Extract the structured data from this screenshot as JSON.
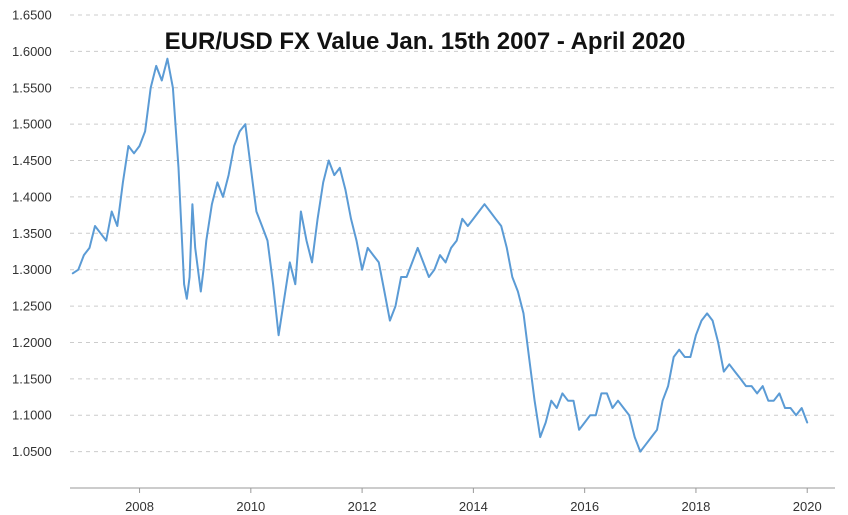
{
  "chart_data": {
    "type": "line",
    "title": "EUR/USD FX Value Jan. 15th 2007 - April 2020",
    "xlabel": "",
    "ylabel": "",
    "xlim": [
      2006.75,
      2020.05
    ],
    "ylim": [
      1.0,
      1.65
    ],
    "y_ticks": [
      "1.0500",
      "1.1000",
      "1.1500",
      "1.2000",
      "1.2500",
      "1.3000",
      "1.3500",
      "1.4000",
      "1.4500",
      "1.5000",
      "1.5500",
      "1.6000",
      "1.6500"
    ],
    "x_ticks": [
      "2008",
      "2010",
      "2012",
      "2014",
      "2016",
      "2018",
      "2020"
    ],
    "grid": true,
    "legend": "none",
    "line_color": "#5b9bd5",
    "series": [
      {
        "x": [
          2006.8,
          2006.9,
          2007.0,
          2007.1,
          2007.2,
          2007.3,
          2007.4,
          2007.5,
          2007.6,
          2007.7,
          2007.8,
          2007.9,
          2008.0,
          2008.1,
          2008.2,
          2008.3,
          2008.4,
          2008.5,
          2008.6,
          2008.7,
          2008.75,
          2008.8,
          2008.85,
          2008.9,
          2008.95,
          2009.0,
          2009.1,
          2009.15,
          2009.2,
          2009.3,
          2009.4,
          2009.5,
          2009.6,
          2009.7,
          2009.8,
          2009.9,
          2010.0,
          2010.1,
          2010.2,
          2010.3,
          2010.4,
          2010.5,
          2010.6,
          2010.7,
          2010.8,
          2010.9,
          2011.0,
          2011.1,
          2011.2,
          2011.3,
          2011.4,
          2011.5,
          2011.6,
          2011.7,
          2011.8,
          2011.9,
          2012.0,
          2012.1,
          2012.2,
          2012.3,
          2012.4,
          2012.5,
          2012.6,
          2012.7,
          2012.8,
          2012.9,
          2013.0,
          2013.1,
          2013.2,
          2013.3,
          2013.4,
          2013.5,
          2013.6,
          2013.7,
          2013.8,
          2013.9,
          2014.0,
          2014.1,
          2014.2,
          2014.3,
          2014.4,
          2014.5,
          2014.6,
          2014.7,
          2014.8,
          2014.9,
          2015.0,
          2015.1,
          2015.2,
          2015.3,
          2015.4,
          2015.5,
          2015.6,
          2015.7,
          2015.8,
          2015.9,
          2016.0,
          2016.1,
          2016.2,
          2016.3,
          2016.4,
          2016.5,
          2016.6,
          2016.7,
          2016.8,
          2016.9,
          2017.0,
          2017.1,
          2017.2,
          2017.3,
          2017.4,
          2017.5,
          2017.6,
          2017.7,
          2017.8,
          2017.9,
          2018.0,
          2018.1,
          2018.2,
          2018.3,
          2018.4,
          2018.5,
          2018.6,
          2018.7,
          2018.8,
          2018.9,
          2019.0,
          2019.1,
          2019.2,
          2019.3,
          2019.4,
          2019.5,
          2019.6,
          2019.7,
          2019.8,
          2019.9,
          2020.0
        ],
        "y": [
          1.295,
          1.3,
          1.32,
          1.33,
          1.36,
          1.35,
          1.34,
          1.38,
          1.36,
          1.42,
          1.47,
          1.46,
          1.47,
          1.49,
          1.55,
          1.58,
          1.56,
          1.59,
          1.55,
          1.44,
          1.36,
          1.28,
          1.26,
          1.29,
          1.39,
          1.33,
          1.27,
          1.3,
          1.34,
          1.39,
          1.42,
          1.4,
          1.43,
          1.47,
          1.49,
          1.5,
          1.44,
          1.38,
          1.36,
          1.34,
          1.28,
          1.21,
          1.26,
          1.31,
          1.28,
          1.38,
          1.34,
          1.31,
          1.37,
          1.42,
          1.45,
          1.43,
          1.44,
          1.41,
          1.37,
          1.34,
          1.3,
          1.33,
          1.32,
          1.31,
          1.27,
          1.23,
          1.25,
          1.29,
          1.29,
          1.31,
          1.33,
          1.31,
          1.29,
          1.3,
          1.32,
          1.31,
          1.33,
          1.34,
          1.37,
          1.36,
          1.37,
          1.38,
          1.39,
          1.38,
          1.37,
          1.36,
          1.33,
          1.29,
          1.27,
          1.24,
          1.18,
          1.12,
          1.07,
          1.09,
          1.12,
          1.11,
          1.13,
          1.12,
          1.12,
          1.08,
          1.09,
          1.1,
          1.1,
          1.13,
          1.13,
          1.11,
          1.12,
          1.11,
          1.1,
          1.07,
          1.05,
          1.06,
          1.07,
          1.08,
          1.12,
          1.14,
          1.18,
          1.19,
          1.18,
          1.18,
          1.21,
          1.23,
          1.24,
          1.23,
          1.2,
          1.16,
          1.17,
          1.16,
          1.15,
          1.14,
          1.14,
          1.13,
          1.14,
          1.12,
          1.12,
          1.13,
          1.11,
          1.11,
          1.1,
          1.11,
          1.09
        ]
      }
    ]
  }
}
